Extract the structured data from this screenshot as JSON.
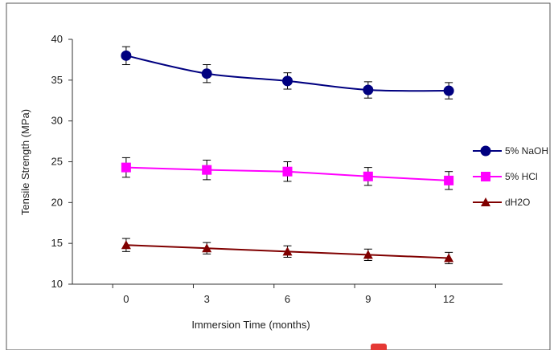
{
  "chart_data": {
    "type": "line",
    "xlabel": "Immersion Time (months)",
    "ylabel": "Tensile Strength (MPa)",
    "x": [
      0,
      3,
      6,
      9,
      12
    ],
    "xlim": [
      -2,
      14
    ],
    "ylim": [
      10,
      40
    ],
    "y_ticks": [
      10,
      15,
      20,
      25,
      30,
      35,
      40
    ],
    "x_ticks": [
      0,
      3,
      6,
      9,
      12
    ],
    "grid": false,
    "legend_position": "right",
    "series": [
      {
        "name": "5% NaOH",
        "values": [
          38.0,
          35.8,
          34.9,
          33.8,
          33.7
        ],
        "errors": [
          1.1,
          1.1,
          1.0,
          1.0,
          1.0
        ],
        "color": "#000080",
        "marker": "circle",
        "smooth": true
      },
      {
        "name": "5% HCl",
        "values": [
          24.3,
          24.0,
          23.8,
          23.2,
          22.7
        ],
        "errors": [
          1.2,
          1.2,
          1.2,
          1.1,
          1.1
        ],
        "color": "#ff00ff",
        "marker": "square",
        "smooth": false
      },
      {
        "name": "dH2O",
        "values": [
          14.8,
          14.4,
          14.0,
          13.6,
          13.2
        ],
        "errors": [
          0.8,
          0.7,
          0.7,
          0.7,
          0.7
        ],
        "color": "#800000",
        "marker": "triangle",
        "smooth": false
      }
    ]
  }
}
